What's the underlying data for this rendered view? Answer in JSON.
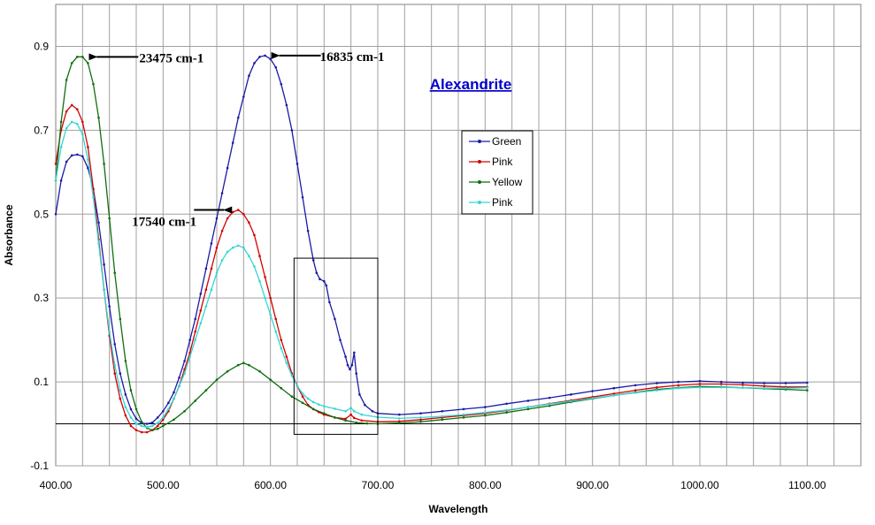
{
  "chart_data": {
    "type": "line",
    "title": "Alexandrite",
    "xlabel": "Wavelength",
    "ylabel": "Absorbance",
    "xlim": [
      400,
      1150
    ],
    "ylim": [
      -0.1,
      1.0
    ],
    "x_ticks": [
      400,
      500,
      600,
      700,
      800,
      900,
      1000,
      1100
    ],
    "x_tick_labels": [
      "400.00",
      "500.00",
      "600.00",
      "700.00",
      "800.00",
      "900.00",
      "1000.00",
      "1100.00"
    ],
    "y_ticks": [
      -0.1,
      0.1,
      0.3,
      0.5,
      0.7,
      0.9
    ],
    "y_tick_labels": [
      "-0.1",
      "0.1",
      "0.3",
      "0.5",
      "0.7",
      "0.9"
    ],
    "grid": true,
    "legend_position": "upper-middle",
    "series": [
      {
        "name": "Green",
        "color": "#1a1aa6",
        "points": [
          [
            400,
            0.5
          ],
          [
            405,
            0.58
          ],
          [
            410,
            0.625
          ],
          [
            415,
            0.64
          ],
          [
            420,
            0.642
          ],
          [
            425,
            0.638
          ],
          [
            430,
            0.61
          ],
          [
            435,
            0.56
          ],
          [
            440,
            0.48
          ],
          [
            445,
            0.38
          ],
          [
            450,
            0.28
          ],
          [
            455,
            0.19
          ],
          [
            460,
            0.12
          ],
          [
            465,
            0.07
          ],
          [
            470,
            0.035
          ],
          [
            475,
            0.012
          ],
          [
            480,
            0.002
          ],
          [
            485,
            0.0
          ],
          [
            490,
            0.003
          ],
          [
            495,
            0.015
          ],
          [
            500,
            0.03
          ],
          [
            505,
            0.05
          ],
          [
            510,
            0.075
          ],
          [
            515,
            0.11
          ],
          [
            520,
            0.15
          ],
          [
            525,
            0.2
          ],
          [
            530,
            0.25
          ],
          [
            535,
            0.31
          ],
          [
            540,
            0.37
          ],
          [
            545,
            0.43
          ],
          [
            550,
            0.49
          ],
          [
            555,
            0.55
          ],
          [
            560,
            0.61
          ],
          [
            565,
            0.67
          ],
          [
            570,
            0.73
          ],
          [
            575,
            0.78
          ],
          [
            580,
            0.83
          ],
          [
            585,
            0.86
          ],
          [
            590,
            0.875
          ],
          [
            595,
            0.878
          ],
          [
            600,
            0.87
          ],
          [
            605,
            0.85
          ],
          [
            610,
            0.81
          ],
          [
            615,
            0.76
          ],
          [
            620,
            0.7
          ],
          [
            625,
            0.62
          ],
          [
            630,
            0.54
          ],
          [
            635,
            0.46
          ],
          [
            640,
            0.39
          ],
          [
            643,
            0.36
          ],
          [
            646,
            0.345
          ],
          [
            650,
            0.34
          ],
          [
            652,
            0.33
          ],
          [
            655,
            0.29
          ],
          [
            660,
            0.25
          ],
          [
            665,
            0.2
          ],
          [
            670,
            0.16
          ],
          [
            672,
            0.14
          ],
          [
            674,
            0.13
          ],
          [
            676,
            0.14
          ],
          [
            678,
            0.17
          ],
          [
            680,
            0.12
          ],
          [
            683,
            0.07
          ],
          [
            688,
            0.045
          ],
          [
            695,
            0.03
          ],
          [
            700,
            0.025
          ],
          [
            720,
            0.022
          ],
          [
            740,
            0.025
          ],
          [
            760,
            0.03
          ],
          [
            780,
            0.035
          ],
          [
            800,
            0.04
          ],
          [
            820,
            0.048
          ],
          [
            840,
            0.055
          ],
          [
            860,
            0.062
          ],
          [
            880,
            0.07
          ],
          [
            900,
            0.078
          ],
          [
            920,
            0.085
          ],
          [
            940,
            0.092
          ],
          [
            960,
            0.097
          ],
          [
            980,
            0.1
          ],
          [
            1000,
            0.102
          ],
          [
            1020,
            0.1
          ],
          [
            1040,
            0.098
          ],
          [
            1060,
            0.097
          ],
          [
            1080,
            0.097
          ],
          [
            1100,
            0.098
          ]
        ]
      },
      {
        "name": "Pink",
        "color": "#d40000",
        "points": [
          [
            400,
            0.62
          ],
          [
            405,
            0.7
          ],
          [
            410,
            0.745
          ],
          [
            415,
            0.76
          ],
          [
            420,
            0.75
          ],
          [
            425,
            0.72
          ],
          [
            430,
            0.66
          ],
          [
            435,
            0.56
          ],
          [
            440,
            0.44
          ],
          [
            445,
            0.32
          ],
          [
            450,
            0.21
          ],
          [
            455,
            0.12
          ],
          [
            460,
            0.06
          ],
          [
            465,
            0.02
          ],
          [
            470,
            -0.005
          ],
          [
            475,
            -0.015
          ],
          [
            480,
            -0.02
          ],
          [
            485,
            -0.02
          ],
          [
            490,
            -0.015
          ],
          [
            495,
            -0.005
          ],
          [
            500,
            0.01
          ],
          [
            505,
            0.03
          ],
          [
            510,
            0.06
          ],
          [
            515,
            0.09
          ],
          [
            520,
            0.13
          ],
          [
            525,
            0.17
          ],
          [
            530,
            0.22
          ],
          [
            535,
            0.27
          ],
          [
            540,
            0.32
          ],
          [
            545,
            0.37
          ],
          [
            550,
            0.42
          ],
          [
            555,
            0.46
          ],
          [
            560,
            0.49
          ],
          [
            565,
            0.505
          ],
          [
            570,
            0.51
          ],
          [
            575,
            0.5
          ],
          [
            580,
            0.48
          ],
          [
            585,
            0.45
          ],
          [
            590,
            0.4
          ],
          [
            595,
            0.35
          ],
          [
            600,
            0.3
          ],
          [
            605,
            0.25
          ],
          [
            610,
            0.2
          ],
          [
            615,
            0.16
          ],
          [
            620,
            0.12
          ],
          [
            625,
            0.09
          ],
          [
            630,
            0.065
          ],
          [
            635,
            0.045
          ],
          [
            640,
            0.035
          ],
          [
            645,
            0.028
          ],
          [
            650,
            0.022
          ],
          [
            660,
            0.015
          ],
          [
            670,
            0.012
          ],
          [
            675,
            0.022
          ],
          [
            678,
            0.014
          ],
          [
            685,
            0.008
          ],
          [
            700,
            0.005
          ],
          [
            720,
            0.006
          ],
          [
            740,
            0.01
          ],
          [
            760,
            0.015
          ],
          [
            780,
            0.02
          ],
          [
            800,
            0.025
          ],
          [
            820,
            0.032
          ],
          [
            840,
            0.04
          ],
          [
            860,
            0.048
          ],
          [
            880,
            0.056
          ],
          [
            900,
            0.064
          ],
          [
            920,
            0.072
          ],
          [
            940,
            0.08
          ],
          [
            960,
            0.087
          ],
          [
            980,
            0.092
          ],
          [
            1000,
            0.095
          ],
          [
            1020,
            0.095
          ],
          [
            1040,
            0.093
          ],
          [
            1060,
            0.09
          ],
          [
            1080,
            0.088
          ],
          [
            1100,
            0.088
          ]
        ]
      },
      {
        "name": "Yellow",
        "color": "#0f6e0f",
        "points": [
          [
            400,
            0.58
          ],
          [
            405,
            0.72
          ],
          [
            410,
            0.82
          ],
          [
            415,
            0.86
          ],
          [
            420,
            0.875
          ],
          [
            425,
            0.875
          ],
          [
            430,
            0.86
          ],
          [
            435,
            0.81
          ],
          [
            440,
            0.73
          ],
          [
            445,
            0.62
          ],
          [
            450,
            0.49
          ],
          [
            455,
            0.36
          ],
          [
            460,
            0.25
          ],
          [
            465,
            0.15
          ],
          [
            470,
            0.08
          ],
          [
            475,
            0.035
          ],
          [
            480,
            0.005
          ],
          [
            485,
            -0.01
          ],
          [
            490,
            -0.015
          ],
          [
            495,
            -0.012
          ],
          [
            500,
            -0.005
          ],
          [
            510,
            0.01
          ],
          [
            520,
            0.03
          ],
          [
            530,
            0.055
          ],
          [
            540,
            0.08
          ],
          [
            550,
            0.105
          ],
          [
            560,
            0.125
          ],
          [
            570,
            0.14
          ],
          [
            575,
            0.145
          ],
          [
            580,
            0.14
          ],
          [
            590,
            0.125
          ],
          [
            600,
            0.105
          ],
          [
            610,
            0.085
          ],
          [
            620,
            0.065
          ],
          [
            630,
            0.05
          ],
          [
            640,
            0.035
          ],
          [
            650,
            0.025
          ],
          [
            660,
            0.015
          ],
          [
            670,
            0.008
          ],
          [
            680,
            0.003
          ],
          [
            690,
            0.001
          ],
          [
            700,
            0.0
          ],
          [
            720,
            0.002
          ],
          [
            740,
            0.005
          ],
          [
            760,
            0.01
          ],
          [
            780,
            0.015
          ],
          [
            800,
            0.02
          ],
          [
            820,
            0.027
          ],
          [
            840,
            0.035
          ],
          [
            860,
            0.043
          ],
          [
            880,
            0.052
          ],
          [
            900,
            0.06
          ],
          [
            920,
            0.068
          ],
          [
            940,
            0.075
          ],
          [
            960,
            0.082
          ],
          [
            980,
            0.086
          ],
          [
            1000,
            0.089
          ],
          [
            1020,
            0.088
          ],
          [
            1040,
            0.086
          ],
          [
            1060,
            0.084
          ],
          [
            1080,
            0.082
          ],
          [
            1100,
            0.08
          ]
        ]
      },
      {
        "name": "Pink",
        "color": "#33d6d6",
        "points": [
          [
            400,
            0.58
          ],
          [
            405,
            0.66
          ],
          [
            410,
            0.705
          ],
          [
            415,
            0.72
          ],
          [
            420,
            0.715
          ],
          [
            425,
            0.69
          ],
          [
            430,
            0.63
          ],
          [
            435,
            0.54
          ],
          [
            440,
            0.43
          ],
          [
            445,
            0.32
          ],
          [
            450,
            0.22
          ],
          [
            455,
            0.14
          ],
          [
            460,
            0.08
          ],
          [
            465,
            0.04
          ],
          [
            470,
            0.015
          ],
          [
            475,
            0.0
          ],
          [
            480,
            -0.005
          ],
          [
            485,
            -0.008
          ],
          [
            490,
            -0.005
          ],
          [
            495,
            0.002
          ],
          [
            500,
            0.015
          ],
          [
            505,
            0.035
          ],
          [
            510,
            0.06
          ],
          [
            515,
            0.09
          ],
          [
            520,
            0.12
          ],
          [
            525,
            0.16
          ],
          [
            530,
            0.2
          ],
          [
            535,
            0.24
          ],
          [
            540,
            0.28
          ],
          [
            545,
            0.32
          ],
          [
            550,
            0.36
          ],
          [
            555,
            0.39
          ],
          [
            560,
            0.41
          ],
          [
            565,
            0.42
          ],
          [
            570,
            0.425
          ],
          [
            575,
            0.42
          ],
          [
            580,
            0.4
          ],
          [
            585,
            0.375
          ],
          [
            590,
            0.34
          ],
          [
            595,
            0.3
          ],
          [
            600,
            0.26
          ],
          [
            605,
            0.22
          ],
          [
            610,
            0.18
          ],
          [
            615,
            0.145
          ],
          [
            620,
            0.115
          ],
          [
            625,
            0.09
          ],
          [
            630,
            0.072
          ],
          [
            635,
            0.06
          ],
          [
            640,
            0.052
          ],
          [
            645,
            0.046
          ],
          [
            650,
            0.042
          ],
          [
            660,
            0.036
          ],
          [
            670,
            0.03
          ],
          [
            675,
            0.038
          ],
          [
            678,
            0.03
          ],
          [
            685,
            0.022
          ],
          [
            700,
            0.016
          ],
          [
            720,
            0.013
          ],
          [
            740,
            0.015
          ],
          [
            760,
            0.018
          ],
          [
            780,
            0.022
          ],
          [
            800,
            0.027
          ],
          [
            820,
            0.033
          ],
          [
            840,
            0.04
          ],
          [
            860,
            0.047
          ],
          [
            880,
            0.054
          ],
          [
            900,
            0.061
          ],
          [
            920,
            0.068
          ],
          [
            940,
            0.074
          ],
          [
            960,
            0.08
          ],
          [
            980,
            0.085
          ],
          [
            1000,
            0.087
          ],
          [
            1020,
            0.087
          ],
          [
            1040,
            0.086
          ],
          [
            1060,
            0.085
          ],
          [
            1080,
            0.085
          ],
          [
            1100,
            0.086
          ]
        ]
      }
    ],
    "annotations": [
      {
        "text": "23475 cm-1",
        "x": 425,
        "y": 0.875
      },
      {
        "text": "16835 cm-1",
        "x": 595,
        "y": 0.878
      },
      {
        "text": "17540 cm-1",
        "x": 570,
        "y": 0.51
      }
    ],
    "highlight_box": {
      "x0": 622,
      "x1": 700,
      "y0": -0.025,
      "y1": 0.395
    }
  }
}
